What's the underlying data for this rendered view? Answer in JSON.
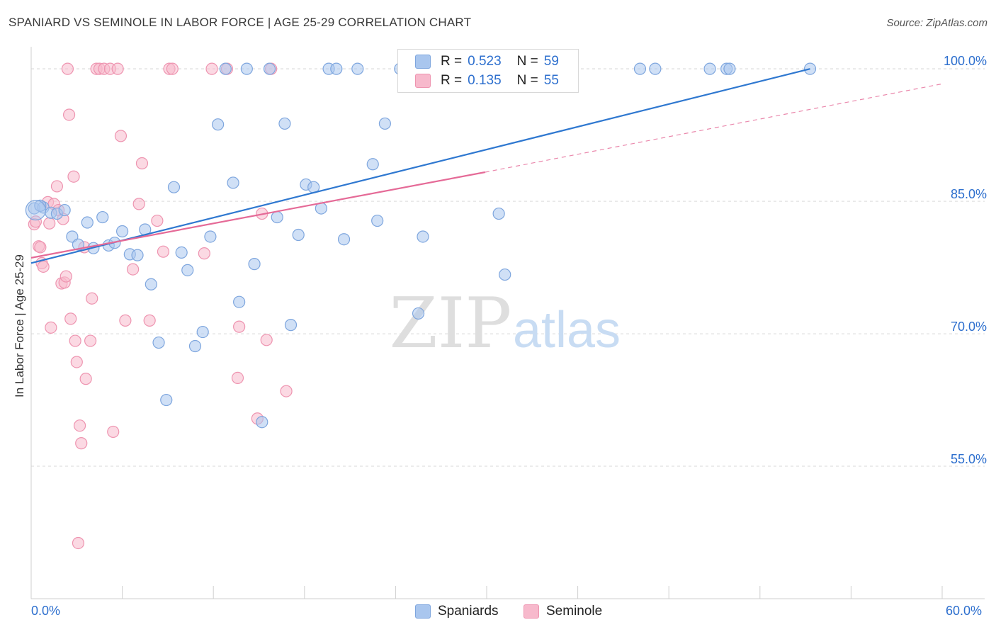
{
  "title": "SPANIARD VS SEMINOLE IN LABOR FORCE | AGE 25-29 CORRELATION CHART",
  "source": "Source: ZipAtlas.com",
  "watermark": {
    "zip": "ZIP",
    "atlas": "atlas"
  },
  "legend": {
    "spaniards": {
      "r_label": "R =",
      "r_value": "0.523",
      "n_label": "N =",
      "n_value": "59"
    },
    "seminole": {
      "r_label": "R =",
      "r_value": "0.135",
      "n_label": "N =",
      "n_value": "55"
    }
  },
  "bottom_legend": {
    "spaniards": "Spaniards",
    "seminole": "Seminole"
  },
  "x_axis": {
    "min_label": "0.0%",
    "max_label": "60.0%"
  },
  "colors": {
    "blue_fill": "#a9c6ee",
    "blue_stroke": "#7ea6de",
    "blue_line": "#2f78d0",
    "pink_fill": "#f7b9cc",
    "pink_stroke": "#ee94b0",
    "pink_line": "#e56a97",
    "tick_label": "#2d6fce",
    "grid": "#d9d9d9"
  },
  "chart_data": {
    "type": "scatter",
    "title": "SPANIARD VS SEMINOLE IN LABOR FORCE | AGE 25-29 CORRELATION CHART",
    "xlabel": "",
    "ylabel": "In Labor Force | Age 25-29",
    "xlim": [
      0,
      60
    ],
    "ylim": [
      40,
      102.5
    ],
    "y_ticks": [
      55,
      70,
      85,
      100
    ],
    "y_tick_labels": [
      "55.0%",
      "70.0%",
      "85.0%",
      "100.0%"
    ],
    "x_tick_labels": [
      "0.0%",
      "60.0%"
    ],
    "legend_position": "top-center",
    "series": [
      {
        "name": "Spaniards",
        "R": 0.523,
        "N": 59,
        "trend": {
          "x0": 0,
          "y0": 78.0,
          "x1": 51.3,
          "y1": 100.0,
          "style": "solid"
        },
        "points": [
          [
            0.2,
            84.2
          ],
          [
            0.8,
            84.3
          ],
          [
            1.3,
            83.7
          ],
          [
            1.7,
            83.6
          ],
          [
            2.2,
            84.0
          ],
          [
            2.7,
            81.0
          ],
          [
            3.1,
            80.1
          ],
          [
            3.7,
            82.6
          ],
          [
            4.1,
            79.7
          ],
          [
            4.7,
            83.2
          ],
          [
            5.1,
            80.0
          ],
          [
            5.5,
            80.3
          ],
          [
            6.0,
            81.6
          ],
          [
            6.5,
            79.0
          ],
          [
            7.0,
            78.9
          ],
          [
            7.5,
            81.8
          ],
          [
            7.9,
            75.6
          ],
          [
            8.4,
            69.0
          ],
          [
            8.9,
            62.5
          ],
          [
            9.4,
            86.6
          ],
          [
            9.9,
            79.2
          ],
          [
            10.3,
            77.2
          ],
          [
            10.8,
            68.6
          ],
          [
            11.3,
            70.2
          ],
          [
            11.8,
            81.0
          ],
          [
            12.3,
            93.7
          ],
          [
            12.8,
            100.0
          ],
          [
            13.3,
            87.1
          ],
          [
            13.7,
            73.6
          ],
          [
            14.2,
            100.0
          ],
          [
            14.7,
            77.9
          ],
          [
            15.2,
            60.0
          ],
          [
            15.7,
            100.0
          ],
          [
            16.2,
            83.2
          ],
          [
            16.7,
            93.8
          ],
          [
            17.1,
            71.0
          ],
          [
            17.6,
            81.2
          ],
          [
            18.1,
            86.9
          ],
          [
            18.6,
            86.6
          ],
          [
            19.1,
            84.2
          ],
          [
            19.6,
            100.0
          ],
          [
            20.1,
            100.0
          ],
          [
            20.6,
            80.7
          ],
          [
            21.5,
            100.0
          ],
          [
            22.5,
            89.2
          ],
          [
            22.8,
            82.8
          ],
          [
            23.3,
            93.8
          ],
          [
            24.3,
            100.0
          ],
          [
            25.5,
            72.3
          ],
          [
            25.8,
            81.0
          ],
          [
            30.8,
            83.6
          ],
          [
            31.2,
            76.7
          ],
          [
            40.1,
            100.0
          ],
          [
            41.1,
            100.0
          ],
          [
            44.7,
            100.0
          ],
          [
            45.8,
            100.0
          ],
          [
            46.0,
            100.0
          ],
          [
            51.3,
            100.0
          ],
          [
            0.6,
            84.5
          ]
        ]
      },
      {
        "name": "Seminole",
        "R": 0.135,
        "N": 55,
        "trend": {
          "x0": 0,
          "y0": 78.6,
          "x1": 29.9,
          "y1": 88.3,
          "style": "solid",
          "ext_x1": 60,
          "ext_y1": 98.3,
          "ext_style": "dashed"
        },
        "points": [
          [
            0.2,
            82.4
          ],
          [
            0.3,
            82.7
          ],
          [
            0.5,
            79.9
          ],
          [
            0.6,
            79.8
          ],
          [
            0.7,
            78.0
          ],
          [
            0.8,
            77.6
          ],
          [
            1.1,
            84.9
          ],
          [
            1.2,
            82.5
          ],
          [
            1.3,
            70.7
          ],
          [
            1.5,
            84.7
          ],
          [
            1.7,
            86.7
          ],
          [
            1.8,
            84.0
          ],
          [
            2.0,
            75.7
          ],
          [
            2.1,
            83.0
          ],
          [
            2.2,
            75.8
          ],
          [
            2.3,
            76.5
          ],
          [
            2.5,
            94.8
          ],
          [
            2.6,
            71.7
          ],
          [
            2.8,
            87.8
          ],
          [
            2.9,
            69.2
          ],
          [
            3.0,
            66.8
          ],
          [
            3.1,
            46.3
          ],
          [
            3.2,
            59.6
          ],
          [
            3.3,
            57.6
          ],
          [
            3.5,
            79.8
          ],
          [
            3.6,
            64.9
          ],
          [
            3.9,
            69.2
          ],
          [
            4.0,
            74.0
          ],
          [
            4.3,
            100.0
          ],
          [
            4.5,
            100.0
          ],
          [
            4.8,
            100.0
          ],
          [
            5.2,
            100.0
          ],
          [
            5.4,
            58.9
          ],
          [
            5.7,
            100.0
          ],
          [
            5.9,
            92.4
          ],
          [
            6.2,
            71.5
          ],
          [
            6.7,
            77.3
          ],
          [
            7.1,
            84.7
          ],
          [
            7.3,
            89.3
          ],
          [
            7.8,
            71.5
          ],
          [
            8.3,
            82.8
          ],
          [
            8.7,
            79.3
          ],
          [
            9.1,
            100.0
          ],
          [
            9.3,
            100.0
          ],
          [
            11.4,
            79.1
          ],
          [
            11.9,
            100.0
          ],
          [
            12.9,
            100.0
          ],
          [
            13.7,
            70.8
          ],
          [
            13.6,
            65.0
          ],
          [
            14.9,
            60.4
          ],
          [
            15.2,
            83.6
          ],
          [
            15.5,
            69.3
          ],
          [
            15.8,
            100.0
          ],
          [
            16.8,
            63.5
          ],
          [
            2.4,
            100.0
          ]
        ]
      }
    ]
  }
}
